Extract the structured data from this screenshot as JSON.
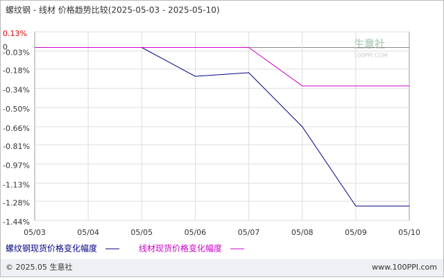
{
  "chart_data": {
    "type": "line",
    "title": "螺纹钢 - 线材 价格趋势比较(2025-05-03 - 2025-05-10)",
    "categories": [
      "05/03",
      "05/04",
      "05/05",
      "05/06",
      "05/07",
      "05/08",
      "05/09",
      "05/10"
    ],
    "series": [
      {
        "name": "螺纹钢现货价格变化幅度",
        "color": "#000080",
        "values": [
          0,
          0,
          0,
          -0.24,
          -0.21,
          -0.66,
          -1.32,
          -1.32
        ]
      },
      {
        "name": "线材现货价格变化幅度",
        "color": "#cc00cc",
        "values": [
          0,
          0,
          0,
          0,
          0,
          -0.32,
          -0.32,
          -0.32
        ]
      }
    ],
    "ylim": [
      -1.44,
      0.13
    ],
    "yticks": [
      {
        "value": 0.13,
        "label": "0.13%"
      },
      0,
      {
        "value": -0.03,
        "label": "-0.03%"
      },
      {
        "value": -0.18,
        "label": "-0.18%"
      },
      {
        "value": -0.34,
        "label": "-0.34%"
      },
      {
        "value": -0.5,
        "label": "-0.50%"
      },
      {
        "value": -0.66,
        "label": "-0.66%"
      },
      {
        "value": -0.81,
        "label": "-0.81%"
      },
      {
        "value": -0.97,
        "label": "-0.97%"
      },
      {
        "value": -1.13,
        "label": "-1.13%"
      },
      {
        "value": -1.28,
        "label": "-1.28%"
      },
      {
        "value": -1.44,
        "label": "-1.44%"
      }
    ],
    "grid": true,
    "watermark": [
      "生意社",
      "100PPI.COM"
    ],
    "footer": {
      "left": "© 2025.05 生意社",
      "right": "www.100PPI.com"
    }
  }
}
